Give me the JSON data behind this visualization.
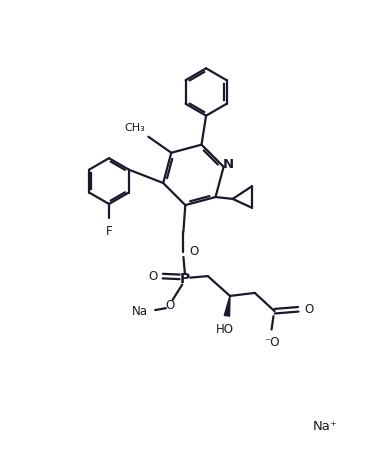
{
  "bg_color": "#ffffff",
  "line_color": "#1a1a2e",
  "line_width": 1.6,
  "font_size": 8.5,
  "figsize": [
    3.83,
    4.49
  ],
  "dpi": 100,
  "xlim": [
    0,
    10
  ],
  "ylim": [
    0,
    11.7
  ]
}
